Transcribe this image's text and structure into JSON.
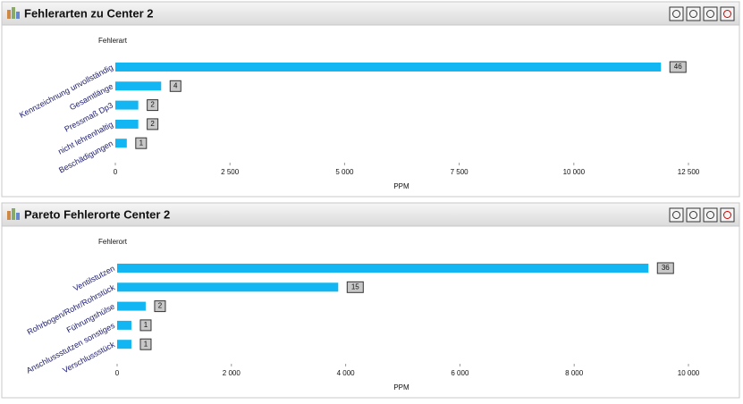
{
  "chart_data": [
    {
      "type": "bar",
      "orientation": "horizontal",
      "title": "Fehlerarten zu Center 2",
      "y_label": "Fehlerart",
      "x_label": "PPM",
      "categories": [
        "Kennzeichnung unvollständig",
        "Gesamtlänge",
        "Pressmaß Dp3",
        "nicht lehrenhaltig",
        "Beschädigungen"
      ],
      "values": [
        11900,
        1000,
        500,
        500,
        250
      ],
      "counts": [
        46,
        4,
        2,
        2,
        1
      ],
      "color": "#12b6f2",
      "xlim": [
        0,
        12500
      ],
      "xticks": [
        0,
        {
          "value": 2500,
          "label": "2 500"
        },
        {
          "value": 5000,
          "label": "5 000"
        },
        {
          "value": 7500,
          "label": "7 500"
        },
        {
          "value": 10000,
          "label": "10 000"
        },
        {
          "value": 12500,
          "label": "12 500"
        }
      ]
    },
    {
      "type": "bar",
      "orientation": "horizontal",
      "title": "Pareto Fehlerorte Center 2",
      "y_label": "Fehlerort",
      "x_label": "PPM",
      "categories": [
        "Ventilstutzen",
        "Rohrbogen/Rohr/Rohrstück",
        "Führungshülse",
        "Anschlussstutzen sonstiges",
        "Verschlussstück"
      ],
      "values": [
        9300,
        3870,
        500,
        250,
        250
      ],
      "counts": [
        36,
        15,
        2,
        1,
        1
      ],
      "color": "#12b6f2",
      "xlim": [
        0,
        10000
      ],
      "xticks": [
        0,
        {
          "value": 2000,
          "label": "2 000"
        },
        {
          "value": 4000,
          "label": "4 000"
        },
        {
          "value": 6000,
          "label": "6 000"
        },
        {
          "value": 8000,
          "label": "8 000"
        },
        {
          "value": 10000,
          "label": "10 000"
        }
      ]
    }
  ]
}
